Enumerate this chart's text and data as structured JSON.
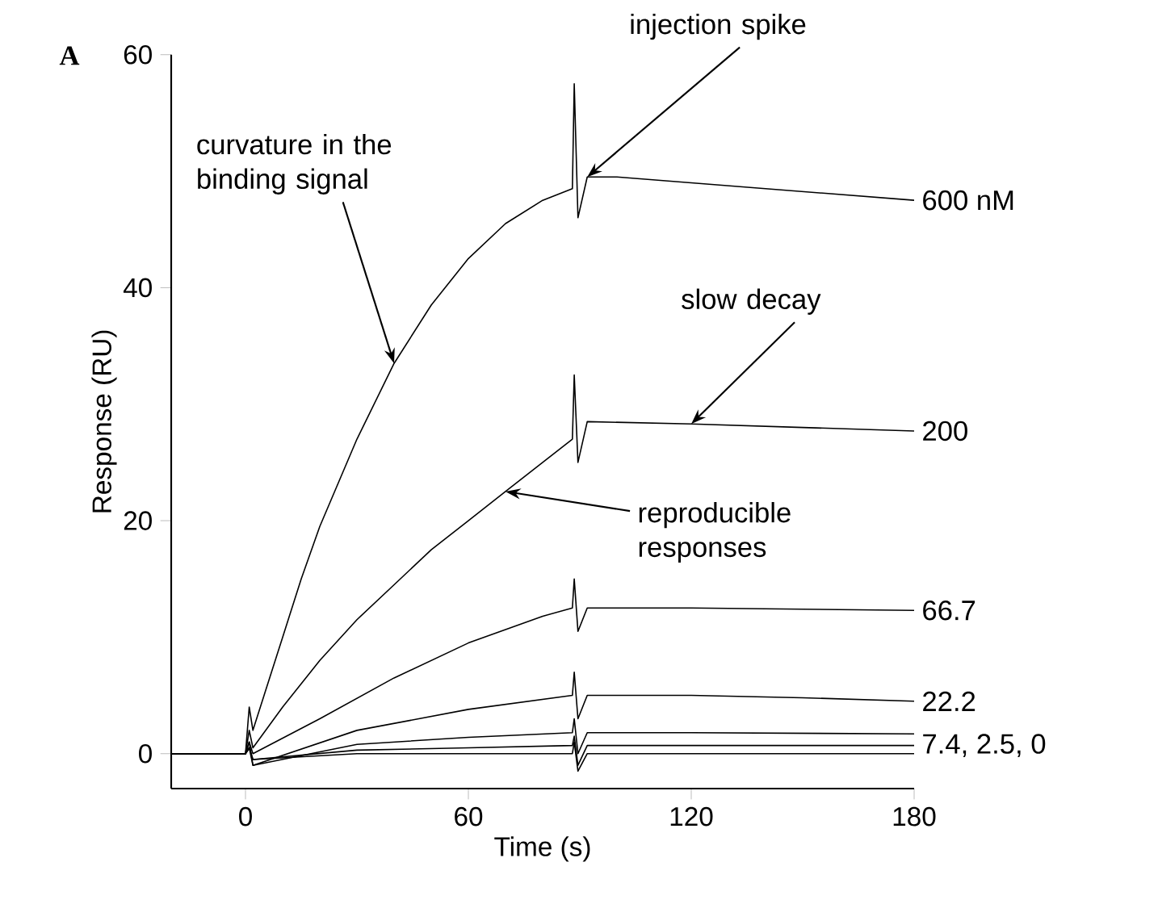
{
  "chart_data": {
    "type": "line",
    "xlabel": "Time (s)",
    "ylabel": "Response (RU)",
    "xlim": [
      -20,
      180
    ],
    "ylim": [
      -3,
      60
    ],
    "xticks": [
      0,
      60,
      120,
      180
    ],
    "yticks": [
      0,
      20,
      40,
      60
    ],
    "grid": false,
    "marker": "none",
    "line_style": "solid",
    "series": [
      {
        "color": "#000000",
        "x": [
          -20,
          -5,
          0,
          1,
          2,
          5,
          10,
          15,
          20,
          30,
          40,
          50,
          60,
          70,
          80,
          88,
          88.5,
          89.5,
          92,
          100,
          120,
          140,
          160,
          180
        ],
        "values": [
          0,
          0,
          0,
          4,
          2,
          5,
          10,
          15,
          19.5,
          27,
          33.5,
          38.5,
          42.5,
          45.5,
          47.5,
          48.5,
          57.5,
          46,
          49.5,
          49.5,
          49,
          48.5,
          48,
          47.5
        ]
      },
      {
        "color": "#000000",
        "x": [
          -20,
          -5,
          0,
          1,
          2,
          10,
          20,
          30,
          40,
          50,
          60,
          70,
          80,
          88,
          88.5,
          89.5,
          92,
          120,
          150,
          180
        ],
        "values": [
          0,
          0,
          0,
          2,
          0.5,
          4,
          8,
          11.5,
          14.5,
          17.5,
          20,
          22.5,
          25,
          27,
          32.5,
          25,
          28.5,
          28.3,
          28,
          27.7
        ]
      },
      {
        "color": "#000000",
        "x": [
          -20,
          0,
          1,
          2,
          20,
          40,
          60,
          80,
          88,
          88.5,
          89.5,
          92,
          120,
          150,
          180
        ],
        "values": [
          0,
          0,
          1,
          0,
          3,
          6.5,
          9.5,
          11.8,
          12.5,
          15,
          10.5,
          12.5,
          12.5,
          12.4,
          12.3
        ]
      },
      {
        "color": "#000000",
        "x": [
          -20,
          0,
          1,
          2,
          30,
          60,
          88,
          88.5,
          89.5,
          92,
          120,
          150,
          180
        ],
        "values": [
          0,
          0,
          1,
          -1,
          2,
          3.8,
          5,
          7,
          3,
          5,
          5,
          4.8,
          4.5
        ]
      },
      {
        "color": "#000000",
        "x": [
          -20,
          0,
          1,
          2,
          30,
          60,
          88,
          88.5,
          89.5,
          92,
          120,
          180
        ],
        "values": [
          0,
          0,
          0.5,
          -1,
          0.8,
          1.4,
          1.8,
          3,
          0,
          1.8,
          1.8,
          1.7
        ]
      },
      {
        "color": "#000000",
        "x": [
          -20,
          0,
          1,
          2,
          30,
          60,
          88,
          88.5,
          89.5,
          92,
          120,
          180
        ],
        "values": [
          0,
          0,
          0.5,
          -0.5,
          0.3,
          0.5,
          0.7,
          1.5,
          -1,
          0.7,
          0.7,
          0.7
        ]
      },
      {
        "color": "#000000",
        "x": [
          -20,
          0,
          1,
          2,
          30,
          60,
          88,
          88.5,
          89.5,
          92,
          120,
          180
        ],
        "values": [
          0,
          0,
          0.5,
          -0.5,
          0,
          0,
          0,
          1,
          -1.5,
          0,
          0,
          0
        ]
      }
    ],
    "annotations": [
      "A",
      {
        "text": "curvature in the binding signal",
        "x": 40,
        "y": 33.5
      },
      {
        "text": "injection spike",
        "x": 92,
        "y": 49.5
      },
      {
        "text": "slow decay",
        "x": 120,
        "y": 28.3
      },
      {
        "text": "reproducible responses",
        "x": 70,
        "y": 22.5
      },
      {
        "text": "600 nM",
        "x": 180,
        "y": 47.5
      },
      {
        "text": "200",
        "x": 180,
        "y": 27.7
      },
      {
        "text": "66.7",
        "x": 180,
        "y": 12.3
      },
      {
        "text": "22.2",
        "x": 180,
        "y": 4.5
      },
      {
        "text": "7.4, 2.5, 0",
        "x": 180,
        "y": 0.7
      }
    ]
  }
}
